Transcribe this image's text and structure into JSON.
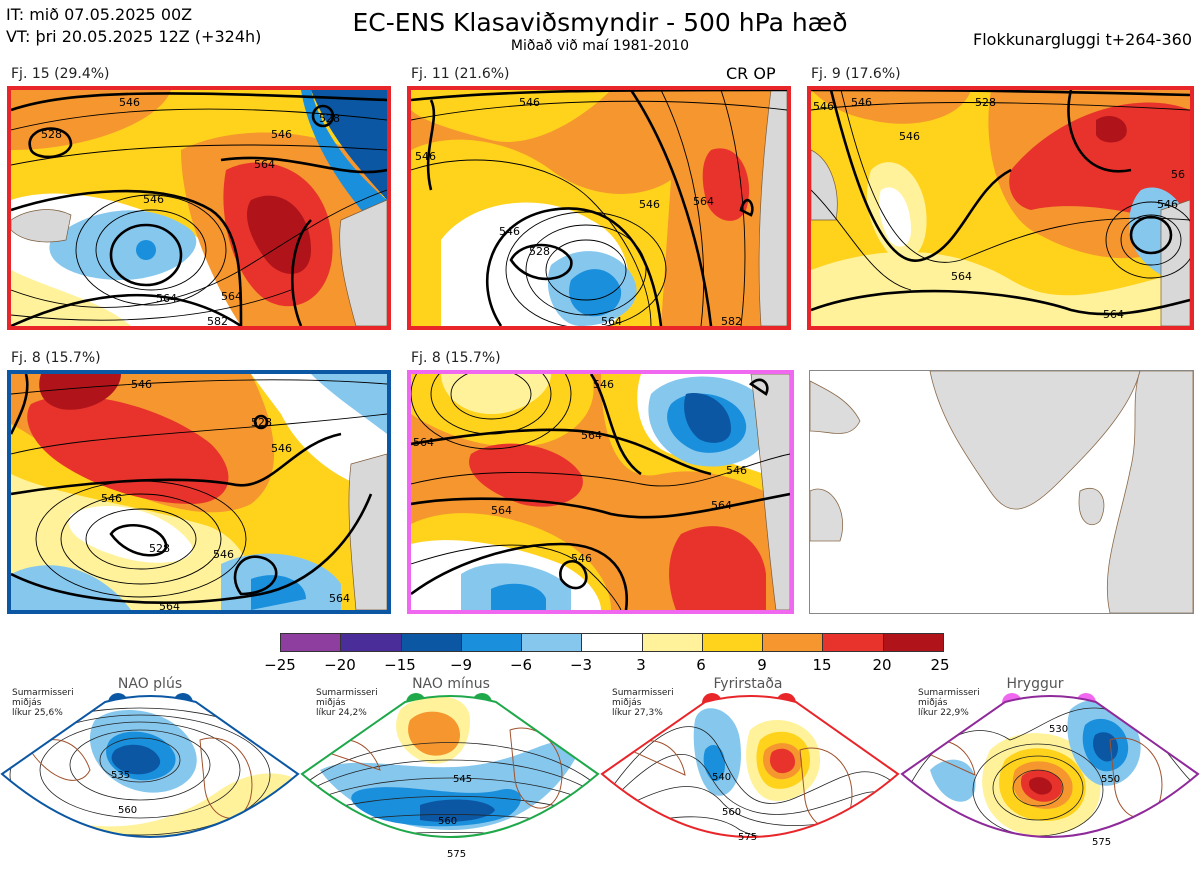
{
  "header": {
    "init_time": "IT: mið 07.05.2025 00Z",
    "valid_time": "VT: þri 20.05.2025 12Z  (+324h)",
    "title": "EC-ENS Klasaviðsmyndir - 500 hPa hæð",
    "subtitle": "Miðað við maí 1981-2010",
    "window": "Flokkunargluggi t+264-360"
  },
  "panels": [
    {
      "label": "Fj. 15 (29.4%)",
      "border_color": "#e8262a",
      "contours": [
        "546",
        "564",
        "564",
        "546",
        "528",
        "528",
        "546",
        "564",
        "582"
      ]
    },
    {
      "label": "Fj. 11 (21.6%)",
      "border_color": "#e8262a",
      "extra": "CR OP",
      "contours": [
        "546",
        "546",
        "528",
        "546",
        "564",
        "564",
        "546",
        "582"
      ]
    },
    {
      "label": "Fj. 9 (17.6%)",
      "border_color": "#e8262a",
      "contours": [
        "528",
        "546",
        "546",
        "546",
        "564",
        "546",
        "564",
        "56"
      ]
    },
    {
      "label": "Fj. 8 (15.7%)",
      "border_color": "#0b57a3",
      "contours": [
        "546",
        "528",
        "546",
        "546",
        "528",
        "546",
        "564",
        "564"
      ]
    },
    {
      "label": "Fj. 8 (15.7%)",
      "border_color": "#f067f0",
      "contours": [
        "564",
        "564",
        "546",
        "564",
        "564",
        "546",
        "546"
      ]
    }
  ],
  "colorbar": {
    "colors": [
      "#8e3e9e",
      "#4b2d9a",
      "#0b57a3",
      "#1a8fdc",
      "#86c7ee",
      "#ffffff",
      "#fff29a",
      "#ffd21c",
      "#f5962f",
      "#e8332c",
      "#b0141a"
    ],
    "labels": [
      "−25",
      "−20",
      "−15",
      "−9",
      "−6",
      "−3",
      "3",
      "6",
      "9",
      "15",
      "20",
      "25"
    ]
  },
  "regimes": [
    {
      "name": "NAO plús",
      "season": "Sumarmisseri",
      "mean": "miðjás",
      "prob": "líkur 25,6%",
      "color": "#0b57a3",
      "contours": [
        "535",
        "560"
      ]
    },
    {
      "name": "NAO mínus",
      "season": "Sumarmisseri",
      "mean": "miðjás",
      "prob": "líkur 24,2%",
      "color": "#1ea84a",
      "contours": [
        "545",
        "560",
        "575"
      ]
    },
    {
      "name": "Fyrirstaða",
      "season": "Sumarmisseri",
      "mean": "miðjás",
      "prob": "líkur 27,3%",
      "color": "#e8262a",
      "contours": [
        "540",
        "560",
        "575"
      ]
    },
    {
      "name": "Hryggur",
      "season": "Sumarmisseri",
      "mean": "miðjás",
      "prob": "líkur 22,9%",
      "color": "#f067f0",
      "border": "#8e2a9a",
      "contours": [
        "530",
        "550",
        "575"
      ]
    }
  ]
}
